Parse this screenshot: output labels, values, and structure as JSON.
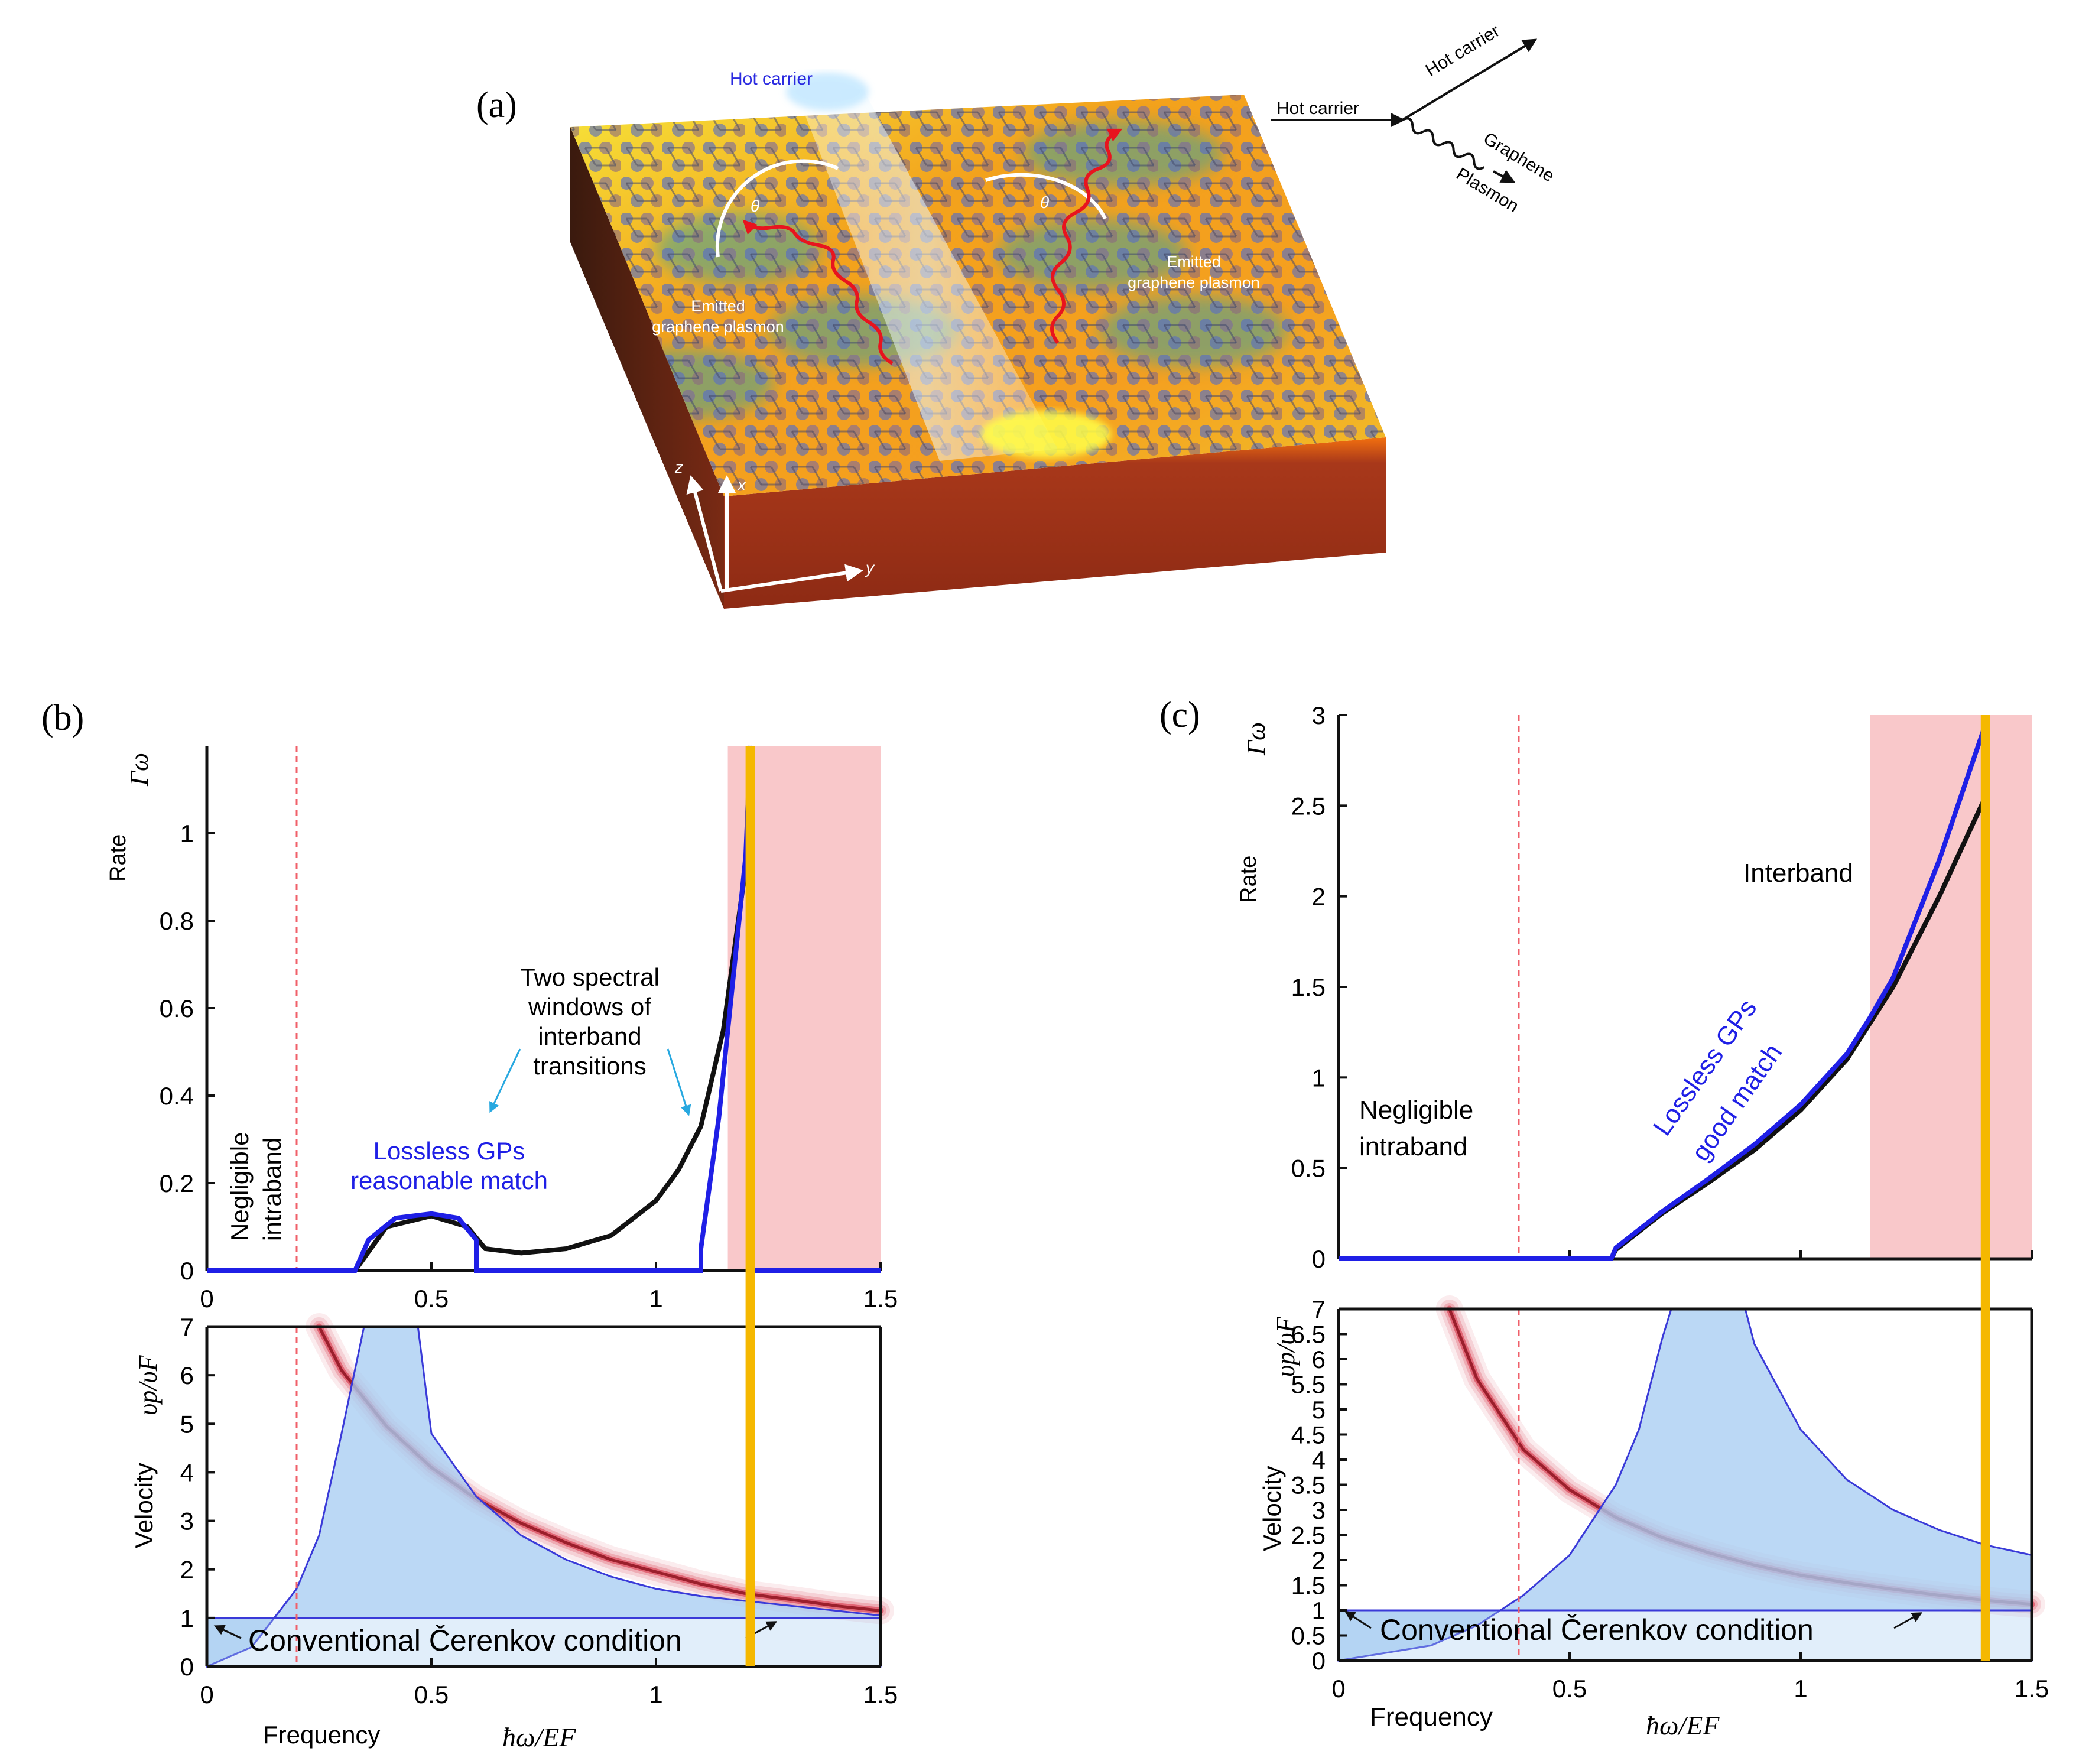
{
  "panel_a": {
    "label": "(a)",
    "hot_carrier": "Hot carrier",
    "theta": "θ",
    "emitted_line1": "Emitted",
    "emitted_line2": "graphene plasmon",
    "axis_z": "z",
    "axis_x": "x",
    "axis_y": "y",
    "diagram": {
      "in_label": "Hot carrier",
      "out_label": "Hot carrier",
      "wave_label1": "Graphene",
      "wave_label2": "Plasmon"
    }
  },
  "panel_b": {
    "label": "(b)",
    "ann_negligible1": "Negligible",
    "ann_negligible2": "intraband",
    "ann_lossless1": "Lossless GPs",
    "ann_lossless2": "reasonable match",
    "ann_two": [
      "Two spectral",
      "windows of",
      "interband",
      "transitions"
    ]
  },
  "panel_c": {
    "label": "(c)",
    "ann_negligible1": "Negligible",
    "ann_negligible2": "intraband",
    "ann_lossless1": "Lossless GPs",
    "ann_lossless2": "good match",
    "ann_interband": "Interband"
  },
  "common": {
    "rate_label": "Rate",
    "rate_symbol": "Γω",
    "velocity_label": "Velocity",
    "velocity_symbol": "υp/υF",
    "frequency_label": "Frequency",
    "freq_symbol": "ħω/EF",
    "cerenkov": "Conventional Čerenkov condition"
  },
  "colors": {
    "blue": "#1f1fe6",
    "black": "#111111",
    "pink": "#f9c8ca",
    "orange": "#f5b800",
    "red": "#d0122a",
    "lightblue": "#a8cdf2"
  },
  "chart_data": [
    {
      "type": "line",
      "title": "(b) Rate",
      "ylabel": "Rate Γω",
      "xlim": [
        0,
        1.5
      ],
      "ylim": [
        0,
        1.2
      ],
      "xticks": [
        "0",
        "0.5",
        "1",
        "1.5"
      ],
      "yticks": [
        "0",
        "0.2",
        "0.4",
        "0.6",
        "0.8",
        "1"
      ],
      "vlines": {
        "dashed_red": 0.2,
        "orange": 1.21
      },
      "shaded_region": [
        1.16,
        1.5
      ],
      "series": [
        {
          "name": "black",
          "x": [
            0,
            0.33,
            0.4,
            0.5,
            0.58,
            0.62,
            0.7,
            0.8,
            0.9,
            1.0,
            1.05,
            1.1,
            1.15,
            1.19,
            1.21
          ],
          "y": [
            0,
            0,
            0.1,
            0.125,
            0.1,
            0.05,
            0.04,
            0.05,
            0.08,
            0.16,
            0.23,
            0.33,
            0.55,
            0.85,
            1.0
          ]
        },
        {
          "name": "blue",
          "x": [
            0,
            0.33,
            0.36,
            0.42,
            0.5,
            0.56,
            0.6,
            0.6,
            1.1,
            1.1,
            1.14,
            1.17,
            1.2,
            1.21,
            1.21,
            1.5
          ],
          "y": [
            0,
            0,
            0.07,
            0.12,
            0.13,
            0.12,
            0.07,
            0,
            0,
            0.05,
            0.35,
            0.65,
            0.95,
            1.2,
            0,
            0
          ]
        }
      ]
    },
    {
      "type": "area",
      "title": "(b) Velocity",
      "ylabel": "Velocity υp/υF",
      "xlabel": "Frequency ħω/EF",
      "xlim": [
        0,
        1.5
      ],
      "ylim": [
        0,
        7
      ],
      "xticks": [
        "0",
        "0.5",
        "1",
        "1.5"
      ],
      "yticks": [
        "0",
        "1",
        "2",
        "3",
        "4",
        "5",
        "6",
        "7"
      ],
      "red_band": {
        "x": [
          0.25,
          0.3,
          0.4,
          0.5,
          0.6,
          0.7,
          0.8,
          0.9,
          1.0,
          1.1,
          1.2,
          1.3,
          1.4,
          1.5
        ],
        "y": [
          7.0,
          6.1,
          4.95,
          4.1,
          3.45,
          2.95,
          2.55,
          2.2,
          1.95,
          1.7,
          1.5,
          1.38,
          1.25,
          1.15
        ]
      },
      "blue_area_upper": {
        "x": [
          0,
          0.1,
          0.2,
          0.25,
          0.3,
          0.35,
          0.4,
          0.45,
          0.47
        ],
        "y": [
          0,
          0.4,
          1.6,
          2.7,
          4.8,
          7.0,
          7.0,
          7.0,
          7.0
        ]
      },
      "blue_area_right": {
        "x": [
          0.47,
          0.5,
          0.6,
          0.7,
          0.8,
          0.9,
          1.0,
          1.1,
          1.2,
          1.3,
          1.4,
          1.5
        ],
        "y": [
          7.0,
          4.8,
          3.5,
          2.7,
          2.2,
          1.85,
          1.6,
          1.45,
          1.35,
          1.25,
          1.15,
          1.05
        ]
      },
      "cerenkov_line": 1.0
    },
    {
      "type": "line",
      "title": "(c) Rate",
      "ylabel": "Rate Γω",
      "xlim": [
        0,
        1.5
      ],
      "ylim": [
        0,
        3
      ],
      "xticks": [],
      "yticks": [
        "0",
        "0.5",
        "1",
        "1.5",
        "2",
        "2.5",
        "3"
      ],
      "vlines": {
        "dashed_red": 0.39,
        "orange": 1.4
      },
      "shaded_region": [
        1.15,
        1.5
      ],
      "series": [
        {
          "name": "black",
          "x": [
            0,
            0.59,
            0.6,
            0.7,
            0.8,
            0.9,
            1.0,
            1.1,
            1.15,
            1.2,
            1.3,
            1.4
          ],
          "y": [
            0,
            0,
            0.05,
            0.25,
            0.42,
            0.6,
            0.82,
            1.1,
            1.3,
            1.5,
            2.0,
            2.55
          ]
        },
        {
          "name": "blue",
          "x": [
            0,
            0.59,
            0.6,
            0.7,
            0.8,
            0.9,
            1.0,
            1.1,
            1.15,
            1.2,
            1.3,
            1.4
          ],
          "y": [
            0,
            0,
            0.06,
            0.26,
            0.44,
            0.63,
            0.85,
            1.13,
            1.33,
            1.55,
            2.2,
            2.95
          ]
        }
      ]
    },
    {
      "type": "area",
      "title": "(c) Velocity",
      "ylabel": "Velocity υp/υF",
      "xlabel": "Frequency ħω/EF",
      "xlim": [
        0,
        1.5
      ],
      "ylim": [
        0,
        7
      ],
      "xticks": [
        "0",
        "0.5",
        "1",
        "1.5"
      ],
      "yticks": [
        "0",
        "0.5",
        "1",
        "1.5",
        "2",
        "2.5",
        "3",
        "3.5",
        "4",
        "4.5",
        "5",
        "5.5",
        "6",
        "6.5",
        "7"
      ],
      "red_band": {
        "x": [
          0.24,
          0.3,
          0.4,
          0.5,
          0.6,
          0.7,
          0.8,
          0.9,
          1.0,
          1.1,
          1.2,
          1.3,
          1.4,
          1.5
        ],
        "y": [
          7.0,
          5.6,
          4.2,
          3.4,
          2.85,
          2.45,
          2.15,
          1.9,
          1.7,
          1.55,
          1.42,
          1.3,
          1.2,
          1.12
        ]
      },
      "blue_area_upper": {
        "x": [
          0,
          0.2,
          0.3,
          0.4,
          0.5,
          0.6,
          0.65,
          0.7,
          0.72
        ],
        "y": [
          0,
          0.3,
          0.7,
          1.3,
          2.1,
          3.5,
          4.6,
          6.4,
          7.0
        ]
      },
      "blue_area_right": {
        "x": [
          0.88,
          0.9,
          1.0,
          1.1,
          1.2,
          1.3,
          1.4,
          1.5
        ],
        "y": [
          7.0,
          6.3,
          4.6,
          3.6,
          3.0,
          2.6,
          2.3,
          2.1
        ]
      },
      "cerenkov_line": 1.0
    }
  ]
}
